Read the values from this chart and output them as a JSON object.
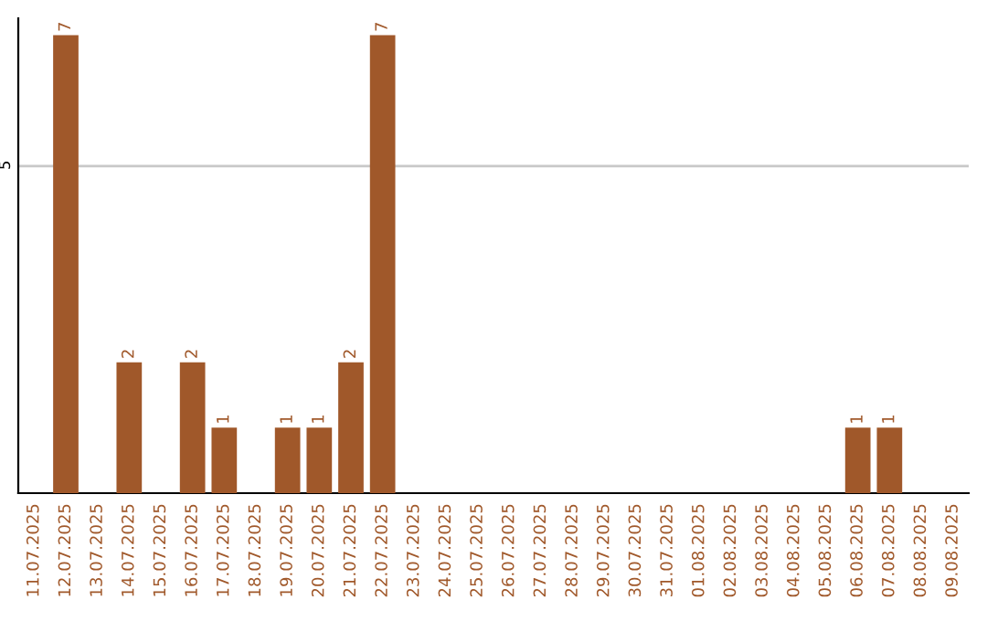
{
  "chart_data": {
    "type": "bar",
    "categories": [
      "11.07.2025",
      "12.07.2025",
      "13.07.2025",
      "14.07.2025",
      "15.07.2025",
      "16.07.2025",
      "17.07.2025",
      "18.07.2025",
      "19.07.2025",
      "20.07.2025",
      "21.07.2025",
      "22.07.2025",
      "23.07.2025",
      "24.07.2025",
      "25.07.2025",
      "26.07.2025",
      "27.07.2025",
      "28.07.2025",
      "29.07.2025",
      "30.07.2025",
      "31.07.2025",
      "01.08.2025",
      "02.08.2025",
      "03.08.2025",
      "04.08.2025",
      "05.08.2025",
      "06.08.2025",
      "07.08.2025",
      "08.08.2025",
      "09.08.2025"
    ],
    "values": [
      0,
      7,
      0,
      2,
      0,
      2,
      1,
      0,
      1,
      1,
      2,
      7,
      0,
      0,
      0,
      0,
      0,
      0,
      0,
      0,
      0,
      0,
      0,
      0,
      0,
      0,
      1,
      1,
      0,
      0
    ],
    "color": "#a0582a",
    "value_labels": [
      null,
      "7",
      null,
      "2",
      null,
      "2",
      "1",
      null,
      "1",
      "1",
      "2",
      "7",
      null,
      null,
      null,
      null,
      null,
      null,
      null,
      null,
      null,
      null,
      null,
      null,
      null,
      null,
      "1",
      "1",
      null,
      null
    ],
    "ylim": [
      0,
      7.26
    ],
    "yticks": [
      5
    ],
    "grid": "y"
  }
}
